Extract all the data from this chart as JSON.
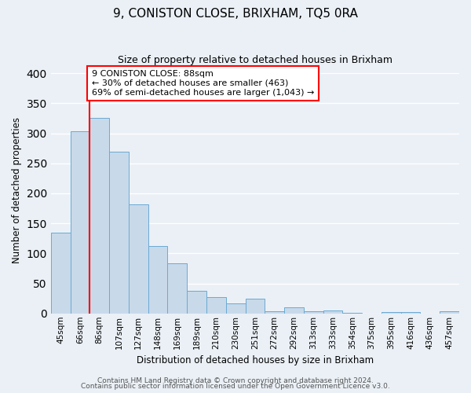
{
  "title": "9, CONISTON CLOSE, BRIXHAM, TQ5 0RA",
  "subtitle": "Size of property relative to detached houses in Brixham",
  "xlabel": "Distribution of detached houses by size in Brixham",
  "ylabel": "Number of detached properties",
  "bin_labels": [
    "45sqm",
    "66sqm",
    "86sqm",
    "107sqm",
    "127sqm",
    "148sqm",
    "169sqm",
    "189sqm",
    "210sqm",
    "230sqm",
    "251sqm",
    "272sqm",
    "292sqm",
    "313sqm",
    "333sqm",
    "354sqm",
    "375sqm",
    "395sqm",
    "416sqm",
    "436sqm",
    "457sqm"
  ],
  "bar_values": [
    135,
    303,
    325,
    270,
    182,
    112,
    83,
    38,
    27,
    17,
    25,
    4,
    10,
    4,
    5,
    1,
    0,
    2,
    2,
    0,
    4
  ],
  "bar_color": "#c8d9ea",
  "bar_edge_color": "#6aaad4",
  "property_bin_index": 2,
  "property_line_label": "9 CONISTON CLOSE: 88sqm",
  "annotation_line1": "← 30% of detached houses are smaller (463)",
  "annotation_line2": "69% of semi-detached houses are larger (1,043) →",
  "annotation_box_color": "white",
  "annotation_box_edge": "red",
  "vline_color": "red",
  "ylim": [
    0,
    410
  ],
  "yticks": [
    0,
    50,
    100,
    150,
    200,
    250,
    300,
    350,
    400
  ],
  "footer1": "Contains HM Land Registry data © Crown copyright and database right 2024.",
  "footer2": "Contains public sector information licensed under the Open Government Licence v3.0.",
  "background_color": "#eaf0f6",
  "grid_color": "white",
  "title_fontsize": 11,
  "subtitle_fontsize": 9,
  "axis_label_fontsize": 8.5,
  "tick_fontsize": 7.5,
  "annotation_fontsize": 8,
  "footer_fontsize": 6.5
}
